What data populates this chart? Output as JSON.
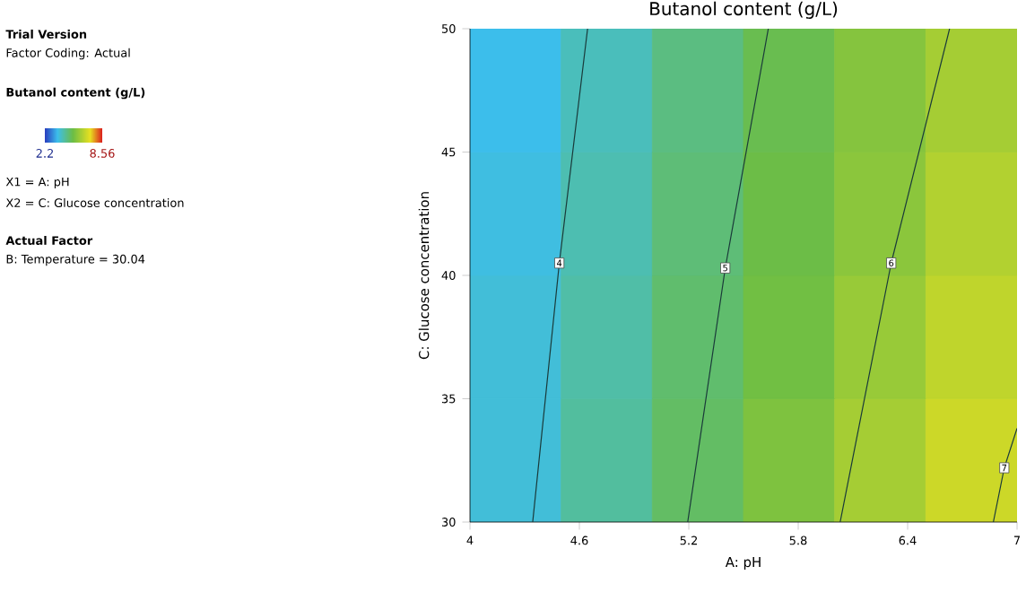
{
  "chart_data": [
    {
      "type": "heatmap",
      "title": "Butanol content (g/L)",
      "clabel": "Butanol content (g/L)",
      "categories": [
        null,
        null,
        null,
        null,
        null,
        null
      ],
      "y_categories": [
        null,
        null,
        null,
        null
      ],
      "cells": [
        [
          3.6,
          4.1,
          4.7,
          5.2,
          5.7,
          6.2
        ],
        [
          3.7,
          4.2,
          4.8,
          5.3,
          5.8,
          6.4
        ],
        [
          3.8,
          4.3,
          4.9,
          5.4,
          6.0,
          6.6
        ],
        [
          3.8,
          4.4,
          5.0,
          5.6,
          6.2,
          6.8
        ]
      ],
      "clim": [
        2.2,
        8.56
      ],
      "cticks": [
        2.2,
        8.56
      ],
      "annotations": [
        "Trial Version",
        "Factor Coding: Actual",
        "X1 = A: pH",
        "X2 = C: Glucose concentration",
        "Actual Factor",
        "B: Temperature = 30.04"
      ]
    },
    {
      "type": "line",
      "xlabel": "A: pH",
      "ylabel": "C: Glucose concentration",
      "xlim": [
        4,
        7
      ],
      "xticks": [
        4,
        4.6,
        5.2,
        5.8,
        6.4,
        7
      ],
      "ylim": [
        30,
        50
      ],
      "yticks": [
        30,
        35,
        40,
        45,
        50
      ],
      "series": [
        {
          "color": "#1a3a3a",
          "x": [
            4.344,
            4.49,
            4.645
          ],
          "values": [
            30,
            40.5,
            50
          ]
        },
        {
          "color": "#1a3a3a",
          "x": [
            5.194,
            5.4,
            5.636
          ],
          "values": [
            30,
            40.3,
            50
          ]
        },
        {
          "color": "#1a3a3a",
          "x": [
            6.03,
            6.31,
            6.63
          ],
          "values": [
            30,
            40.5,
            50
          ]
        },
        {
          "color": "#1a3a3a",
          "x": [
            6.87,
            6.93,
            7.0
          ],
          "values": [
            30,
            32.2,
            33.8
          ]
        }
      ],
      "annotations": [
        {
          "text": "4",
          "x": 4.49,
          "y": 40.5
        },
        {
          "text": "5",
          "x": 5.4,
          "y": 40.3
        },
        {
          "text": "6",
          "x": 6.31,
          "y": 40.5
        },
        {
          "text": "7",
          "x": 6.93,
          "y": 32.2
        }
      ]
    }
  ]
}
